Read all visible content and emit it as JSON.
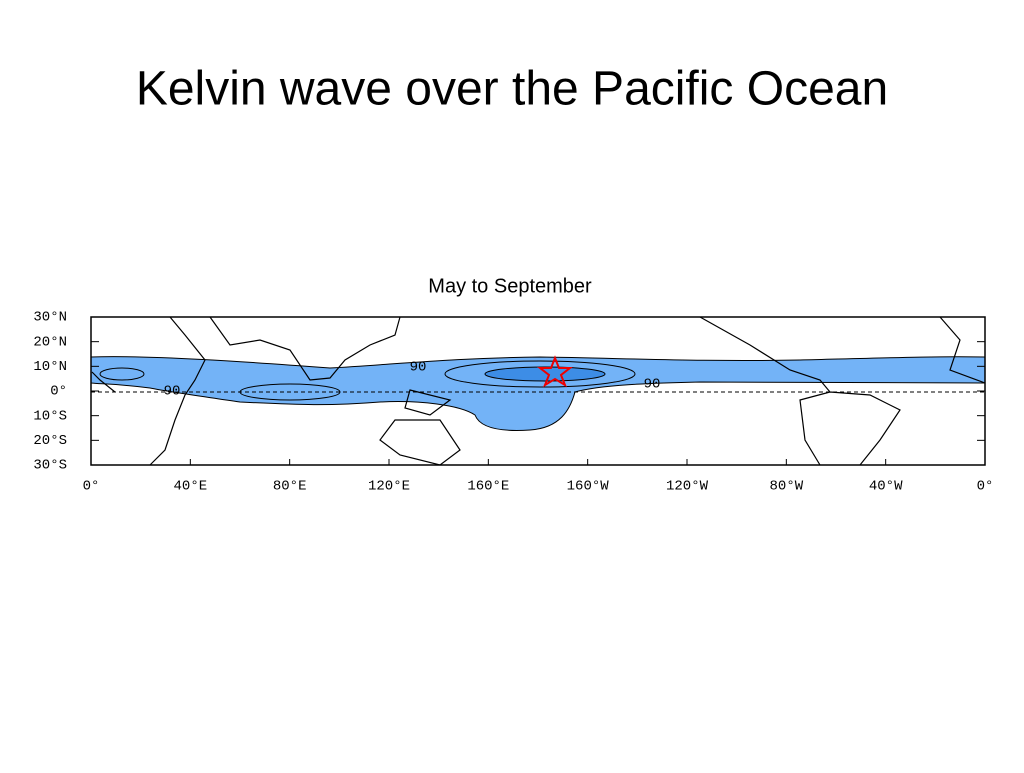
{
  "title": "Kelvin wave over the Pacific Ocean",
  "figure": {
    "title": "May to September",
    "lat_labels": [
      "30°N",
      "20°N",
      "10°N",
      "0°",
      "10°S",
      "20°S",
      "30°S"
    ],
    "lon_labels": [
      "0°",
      "40°E",
      "80°E",
      "120°E",
      "160°E",
      "160°W",
      "120°W",
      "80°W",
      "40°W",
      "0°"
    ],
    "contour_labels": [
      "90",
      "90",
      "90"
    ]
  }
}
